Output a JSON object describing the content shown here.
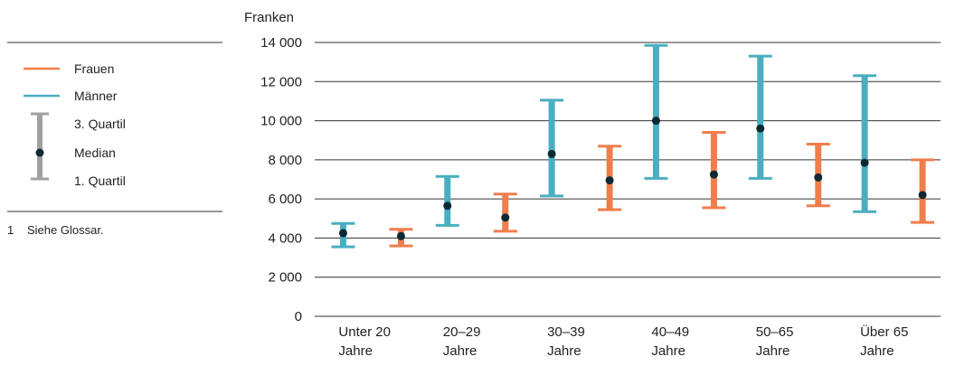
{
  "legend": {
    "frauen": "Frauen",
    "maenner": "Männer",
    "q3": "3. Quartil",
    "median": "Median",
    "q1": "1. Quartil"
  },
  "footnote": {
    "number": "1",
    "text": "Siehe Glossar."
  },
  "colors": {
    "frauen": "#f07e4c",
    "maenner": "#4aaec1",
    "median": "#0d2a33",
    "legend_gray": "#a0a0a0",
    "grid": "#333333"
  },
  "chart_data": {
    "type": "errorbar",
    "ylabel": "Franken",
    "ylim": [
      0,
      14000
    ],
    "yticks": [
      {
        "value": 0,
        "label": "0"
      },
      {
        "value": 2000,
        "label": "2 000"
      },
      {
        "value": 4000,
        "label": "4 000"
      },
      {
        "value": 6000,
        "label": "6 000"
      },
      {
        "value": 8000,
        "label": "8 000"
      },
      {
        "value": 10000,
        "label": "10 000"
      },
      {
        "value": 12000,
        "label": "12 000"
      },
      {
        "value": 14000,
        "label": "14 000"
      }
    ],
    "categories": [
      [
        "Unter 20",
        "Jahre"
      ],
      [
        "20–29",
        "Jahre"
      ],
      [
        "30–39",
        "Jahre"
      ],
      [
        "40–49",
        "Jahre"
      ],
      [
        "50–65",
        "Jahre"
      ],
      [
        "Über 65",
        "Jahre"
      ]
    ],
    "series": [
      {
        "name": "Männer",
        "q1": [
          3550,
          4650,
          6150,
          7050,
          7050,
          5350
        ],
        "median": [
          4250,
          5650,
          8300,
          10000,
          9600,
          7850
        ],
        "q3": [
          4750,
          7150,
          11050,
          13850,
          13300,
          12300
        ]
      },
      {
        "name": "Frauen",
        "q1": [
          3600,
          4350,
          5450,
          5550,
          5650,
          4800
        ],
        "median": [
          4100,
          5050,
          6950,
          7250,
          7100,
          6200
        ],
        "q3": [
          4450,
          6250,
          8700,
          9400,
          8800,
          8000
        ]
      }
    ],
    "grid": true,
    "legend_position": "left"
  }
}
